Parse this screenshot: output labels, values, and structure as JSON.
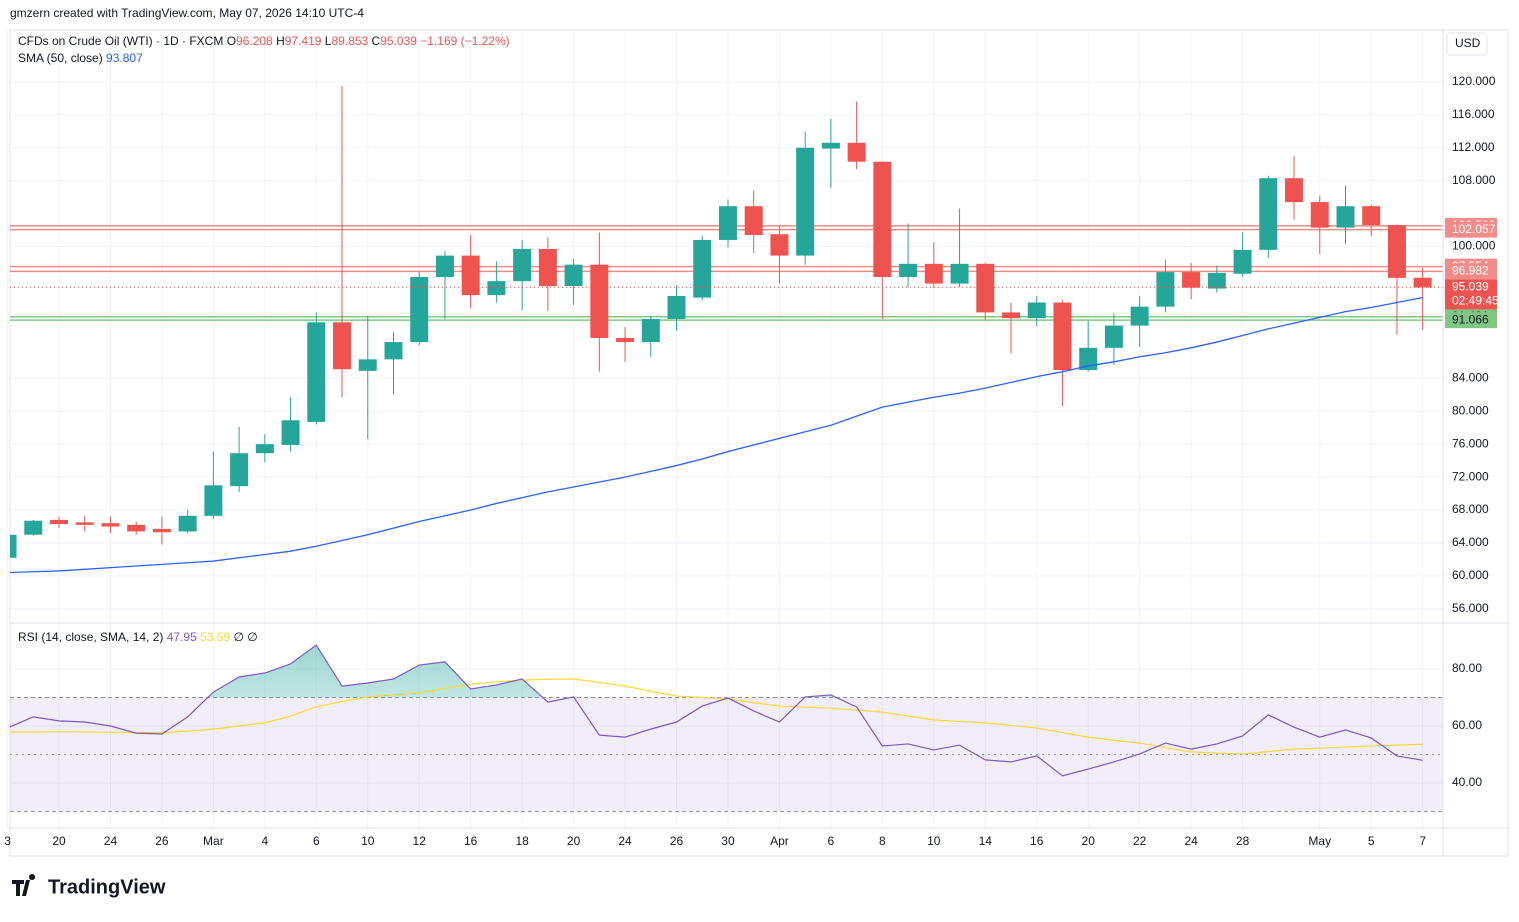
{
  "header": {
    "attribution": "gmzern created with TradingView.com, May 07, 2026 14:10 UTC-4"
  },
  "chart_data": {
    "type": "candlestick",
    "title": "CFDs on Crude Oil (WTI) · 1D · FXCM",
    "currency": "USD",
    "categories": [
      "3",
      null,
      "20",
      null,
      "24",
      null,
      "26",
      null,
      "Mar",
      null,
      "4",
      null,
      "6",
      null,
      "10",
      null,
      "12",
      null,
      "16",
      null,
      "18",
      null,
      "20",
      null,
      "24",
      null,
      "26",
      null,
      "30",
      null,
      "Apr",
      null,
      "6",
      null,
      "8",
      null,
      "10",
      null,
      "14",
      null,
      "16",
      null,
      "20",
      null,
      "22",
      null,
      "24",
      null,
      "28",
      null,
      null,
      "May",
      null,
      "5",
      null,
      "7"
    ],
    "open": [
      62.2,
      65.0,
      66.8,
      66.5,
      66.4,
      66.2,
      65.7,
      65.4,
      67.3,
      70.9,
      74.9,
      75.9,
      78.7,
      90.8,
      84.9,
      86.3,
      88.4,
      96.3,
      98.9,
      94.1,
      95.8,
      99.7,
      95.2,
      97.8,
      88.9,
      88.4,
      91.2,
      93.8,
      100.8,
      104.9,
      101.5,
      98.9,
      111.9,
      112.6,
      110.3,
      96.3,
      97.9,
      95.5,
      97.9,
      92.0,
      91.3,
      93.2,
      85.0,
      87.7,
      90.4,
      92.7,
      96.9,
      94.9,
      96.7,
      99.6,
      108.3,
      105.4,
      102.3,
      104.9,
      102.6,
      96.208
    ],
    "high": [
      65.0,
      66.8,
      67.2,
      67.3,
      67.2,
      66.6,
      67.2,
      68.0,
      75.1,
      78.1,
      77.2,
      81.7,
      92.0,
      119.5,
      91.5,
      89.6,
      96.9,
      99.5,
      101.4,
      98.2,
      100.8,
      101.1,
      98.5,
      101.7,
      90.2,
      91.6,
      95.3,
      101.3,
      105.7,
      106.8,
      102.5,
      114.0,
      115.5,
      117.6,
      110.3,
      102.8,
      100.5,
      104.6,
      98.0,
      93.2,
      94.0,
      93.5,
      91.0,
      91.9,
      94.0,
      98.4,
      98.0,
      97.7,
      101.7,
      108.6,
      111.0,
      106.2,
      107.4,
      105.1,
      102.7,
      97.419
    ],
    "low": [
      62.2,
      64.9,
      65.8,
      65.4,
      65.2,
      65.0,
      63.8,
      65.2,
      66.9,
      70.2,
      73.8,
      75.1,
      78.4,
      81.7,
      76.6,
      82.0,
      88.0,
      91.2,
      92.5,
      93.2,
      92.3,
      92.2,
      92.9,
      84.8,
      86.0,
      86.6,
      89.8,
      93.5,
      99.9,
      99.2,
      95.5,
      97.8,
      107.1,
      109.4,
      91.2,
      95.0,
      95.0,
      95.1,
      91.0,
      87.0,
      90.3,
      80.6,
      84.8,
      85.6,
      87.8,
      92.0,
      93.6,
      94.4,
      96.3,
      98.6,
      103.3,
      99.1,
      100.3,
      101.3,
      89.3,
      89.853
    ],
    "close": [
      65.0,
      66.7,
      66.3,
      66.2,
      66.0,
      65.4,
      65.3,
      67.3,
      71.0,
      74.9,
      76.0,
      78.9,
      90.8,
      85.1,
      86.3,
      88.4,
      96.3,
      98.9,
      94.1,
      95.8,
      99.7,
      95.2,
      97.8,
      88.9,
      88.4,
      91.2,
      94.0,
      100.8,
      104.9,
      101.4,
      98.9,
      112.0,
      112.6,
      110.3,
      96.3,
      97.9,
      95.5,
      97.9,
      92.0,
      91.3,
      93.2,
      85.0,
      87.7,
      90.4,
      92.7,
      96.9,
      95.0,
      96.8,
      99.6,
      108.3,
      105.4,
      102.3,
      104.9,
      102.6,
      96.2,
      95.039
    ],
    "ohlc_labels": [
      "O",
      "H",
      "L",
      "C"
    ],
    "change_label": "−1.169 (−1.22%)",
    "up_color": "#26a69a",
    "down_color": "#ef5350",
    "ylim": [
      54.4,
      126.3
    ],
    "yticks": [
      {
        "value": 56,
        "label": "56.000"
      },
      {
        "value": 60,
        "label": "60.000"
      },
      {
        "value": 64,
        "label": "64.000"
      },
      {
        "value": 68,
        "label": "68.000"
      },
      {
        "value": 72,
        "label": "72.000"
      },
      {
        "value": 76,
        "label": "76.000"
      },
      {
        "value": 80,
        "label": "80.000"
      },
      {
        "value": 84,
        "label": "84.000"
      },
      {
        "value": 100,
        "label": "100.000"
      },
      {
        "value": 108,
        "label": "108.000"
      },
      {
        "value": 112,
        "label": "112.000"
      },
      {
        "value": 116,
        "label": "116.000"
      },
      {
        "value": 120,
        "label": "120.000"
      }
    ],
    "grid": true,
    "sma": {
      "name": "SMA (50, close)",
      "color": "#2962ff",
      "values": [
        60.4,
        60.5,
        60.6,
        60.8,
        61.0,
        61.2,
        61.4,
        61.6,
        61.8,
        62.2,
        62.6,
        63.0,
        63.6,
        64.3,
        65.0,
        65.8,
        66.6,
        67.3,
        68.0,
        68.8,
        69.5,
        70.2,
        70.8,
        71.4,
        72.0,
        72.7,
        73.4,
        74.2,
        75.1,
        75.9,
        76.7,
        77.5,
        78.3,
        79.4,
        80.5,
        81.1,
        81.7,
        82.2,
        82.8,
        83.5,
        84.2,
        84.8,
        85.5,
        86.0,
        86.6,
        87.1,
        87.7,
        88.4,
        89.2,
        90.0,
        90.7,
        91.4,
        92.1,
        92.6,
        93.2,
        93.807
      ]
    },
    "levels": [
      {
        "value": 102.503,
        "color": "#f28b8a"
      },
      {
        "value": 102.057,
        "color": "#f28b8a"
      },
      {
        "value": 97.554,
        "color": "#f28b8a"
      },
      {
        "value": 96.982,
        "color": "#f28b8a"
      },
      {
        "value": 91.481,
        "color": "#81c784"
      },
      {
        "value": 91.066,
        "color": "#81c784"
      }
    ],
    "countdown": "02:49:45",
    "rsi": {
      "name": "RSI (14, close, SMA, 14, 2)",
      "color": "#7e57c2",
      "values": [
        59.3,
        63.2,
        61.8,
        61.4,
        60.0,
        57.5,
        57.2,
        63.2,
        71.9,
        77.2,
        78.6,
        81.8,
        88.4,
        74.0,
        75.1,
        76.5,
        81.4,
        82.5,
        73.0,
        74.4,
        76.5,
        68.4,
        70.2,
        56.8,
        56.1,
        58.9,
        61.4,
        67.0,
        69.8,
        65.3,
        61.4,
        70.2,
        70.9,
        66.7,
        53.0,
        53.7,
        51.6,
        53.3,
        48.1,
        47.4,
        49.5,
        42.5,
        44.9,
        47.4,
        50.2,
        54.0,
        51.9,
        53.7,
        56.5,
        63.9,
        59.6,
        56.1,
        58.6,
        55.8,
        49.5,
        47.95
      ],
      "sma": {
        "color": "#fdd835",
        "values": [
          57.9,
          57.9,
          58.0,
          57.9,
          57.8,
          57.7,
          57.7,
          58.2,
          58.9,
          60.0,
          61.1,
          63.5,
          66.7,
          68.6,
          70.2,
          70.9,
          71.6,
          73.2,
          74.7,
          75.5,
          76.1,
          76.4,
          76.5,
          75.3,
          74.0,
          72.2,
          70.5,
          70.0,
          69.5,
          68.2,
          67.0,
          66.6,
          66.3,
          65.6,
          64.9,
          63.5,
          62.1,
          61.6,
          61.1,
          60.2,
          59.3,
          57.7,
          56.1,
          55.0,
          54.0,
          52.4,
          50.9,
          50.5,
          50.2,
          51.0,
          51.9,
          52.2,
          52.6,
          53.0,
          53.3,
          53.59
        ]
      },
      "extra": "∅ ∅",
      "ylim": [
        24.2,
        95.8
      ],
      "yticks": [
        {
          "value": 40,
          "label": "40.00"
        },
        {
          "value": 60,
          "label": "60.00"
        },
        {
          "value": 80,
          "label": "80.00"
        }
      ],
      "bands": [
        30,
        50,
        70
      ]
    }
  },
  "footer": {
    "logo": "TradingView"
  }
}
